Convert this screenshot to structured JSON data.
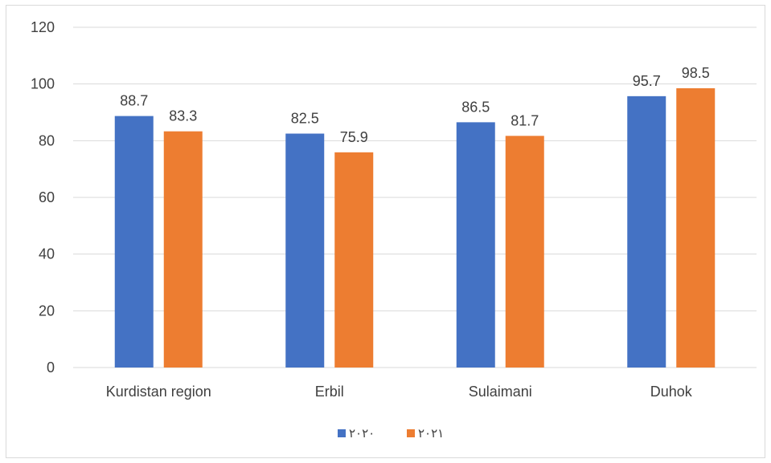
{
  "chart_data": {
    "type": "bar",
    "title": "",
    "xlabel": "",
    "ylabel": "",
    "categories": [
      "Kurdistan region",
      "Erbil",
      "Sulaimani",
      "Duhok"
    ],
    "series": [
      {
        "name": "٢٠٢٠",
        "color": "#4472C4",
        "values": [
          88.7,
          82.5,
          86.5,
          95.7
        ]
      },
      {
        "name": "٢٠٢١",
        "color": "#ED7D31",
        "values": [
          83.3,
          75.9,
          81.7,
          98.5
        ]
      }
    ],
    "ylim": [
      0,
      120
    ],
    "yticks": [
      0,
      20,
      40,
      60,
      80,
      100,
      120
    ],
    "grid": true,
    "gridColor": "#d9d9d9",
    "data_labels": true,
    "legend_position": "bottom"
  }
}
